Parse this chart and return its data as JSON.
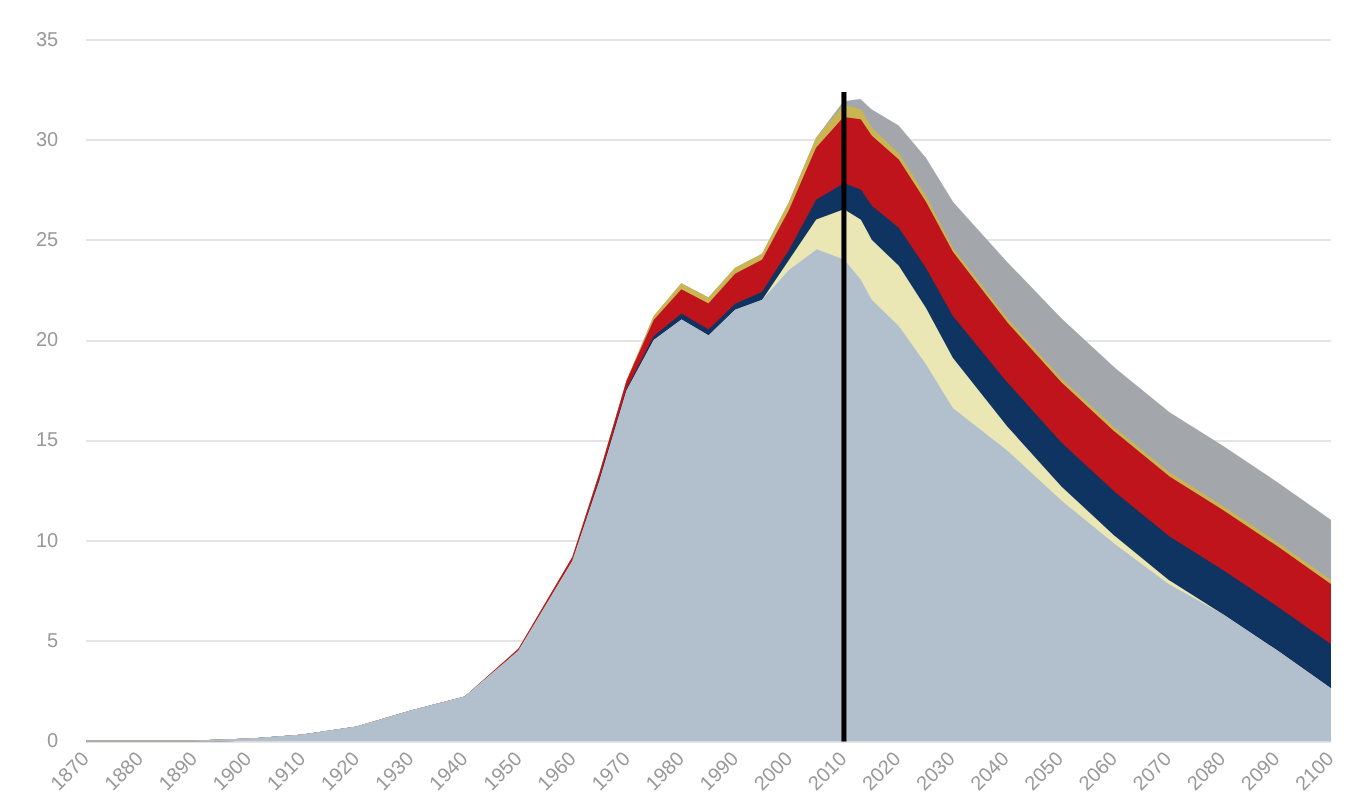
{
  "chart_data": {
    "type": "area",
    "stacked": true,
    "x": [
      1870,
      1880,
      1890,
      1900,
      1910,
      1920,
      1930,
      1940,
      1950,
      1960,
      1965,
      1970,
      1975,
      1980,
      1985,
      1990,
      1995,
      2000,
      2005,
      2010,
      2013,
      2015,
      2020,
      2025,
      2030,
      2040,
      2050,
      2060,
      2070,
      2080,
      2090,
      2100
    ],
    "series": [
      {
        "color": "#b2bfcd",
        "values": [
          0,
          0,
          0,
          0.1,
          0.3,
          0.7,
          1.5,
          2.2,
          4.5,
          9,
          13,
          17.5,
          20,
          21,
          20.2,
          21.5,
          22,
          23.5,
          24.5,
          24,
          23,
          22,
          20.7,
          18.8,
          16.6,
          14.5,
          12,
          9.8,
          7.8,
          6.3,
          4.5,
          2.6
        ]
      },
      {
        "color": "#ebe7b5",
        "values": [
          0,
          0,
          0,
          0,
          0,
          0,
          0,
          0,
          0,
          0,
          0,
          0,
          0,
          0,
          0,
          0,
          0,
          0.5,
          1.5,
          2.5,
          3,
          3,
          3,
          2.8,
          2.5,
          1.2,
          0.7,
          0.4,
          0.2,
          0,
          0,
          0
        ]
      },
      {
        "color": "#0f3461",
        "values": [
          0,
          0,
          0,
          0,
          0,
          0,
          0,
          0,
          0,
          0,
          0.1,
          0.1,
          0.2,
          0.3,
          0.3,
          0.3,
          0.4,
          0.5,
          1,
          1.3,
          1.5,
          1.7,
          1.9,
          2,
          2.1,
          2.2,
          2.2,
          2.2,
          2.2,
          2.2,
          2.2,
          2.2
        ]
      },
      {
        "color": "#c0141c",
        "values": [
          0,
          0,
          0,
          0,
          0,
          0,
          0,
          0,
          0.1,
          0.2,
          0.3,
          0.4,
          0.8,
          1.2,
          1.3,
          1.5,
          1.6,
          2,
          2.6,
          3.3,
          3.5,
          3.5,
          3.4,
          3.3,
          3.2,
          3,
          3,
          3,
          3,
          3,
          3,
          3
        ]
      },
      {
        "color": "#c9b552",
        "values": [
          0,
          0,
          0,
          0,
          0,
          0,
          0,
          0,
          0,
          0,
          0,
          0,
          0.2,
          0.3,
          0.3,
          0.3,
          0.3,
          0.4,
          0.5,
          0.6,
          0.5,
          0.4,
          0.3,
          0.3,
          0.2,
          0.2,
          0.2,
          0.2,
          0.2,
          0.2,
          0.2,
          0.2
        ]
      },
      {
        "color": "#a3a7ab",
        "values": [
          0,
          0,
          0,
          0,
          0,
          0,
          0,
          0,
          0,
          0,
          0,
          0,
          0,
          0,
          0,
          0,
          0,
          0,
          0,
          0.2,
          0.5,
          0.9,
          1.4,
          1.9,
          2.3,
          2.8,
          3,
          3,
          3,
          3,
          3,
          3
        ]
      }
    ],
    "xlim": [
      1870,
      2100
    ],
    "xticks": [
      1870,
      1880,
      1890,
      1900,
      1910,
      1920,
      1930,
      1940,
      1950,
      1960,
      1970,
      1980,
      1990,
      2000,
      2010,
      2020,
      2030,
      2040,
      2050,
      2060,
      2070,
      2080,
      2090,
      2100
    ],
    "ylim": [
      0,
      35
    ],
    "yticks": [
      0,
      5,
      10,
      15,
      20,
      25,
      30,
      35
    ],
    "grid": "y",
    "legend": false,
    "ref_lines": [
      {
        "axis": "x",
        "value": 2010,
        "color": "#000000"
      }
    ]
  }
}
